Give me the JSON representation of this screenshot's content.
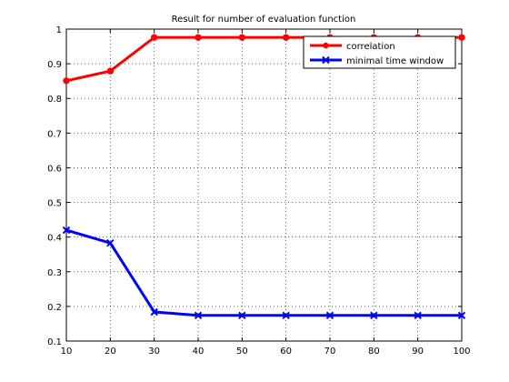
{
  "chart_data": {
    "type": "line",
    "title": "Result for number of evaluation function",
    "xlabel": "",
    "ylabel": "",
    "x": [
      10,
      20,
      30,
      40,
      50,
      60,
      70,
      80,
      90,
      100
    ],
    "xlim": [
      10,
      100
    ],
    "ylim": [
      0.1,
      1.0
    ],
    "xticks": [
      "10",
      "20",
      "30",
      "40",
      "50",
      "60",
      "70",
      "80",
      "90",
      "100"
    ],
    "yticks": [
      "0.1",
      "0.2",
      "0.3",
      "0.4",
      "0.5",
      "0.6",
      "0.7",
      "0.8",
      "0.9",
      "1"
    ],
    "grid": true,
    "legend_position": "top-right",
    "series": [
      {
        "name": "correlation",
        "color": "#ff0000",
        "marker": "circle",
        "values": [
          0.851,
          0.879,
          0.976,
          0.976,
          0.976,
          0.976,
          0.976,
          0.976,
          0.976,
          0.976
        ]
      },
      {
        "name": "minimal time window",
        "color": "#0000ff",
        "marker": "x",
        "values": [
          0.42,
          0.383,
          0.184,
          0.174,
          0.174,
          0.174,
          0.174,
          0.174,
          0.174,
          0.174
        ]
      }
    ]
  }
}
